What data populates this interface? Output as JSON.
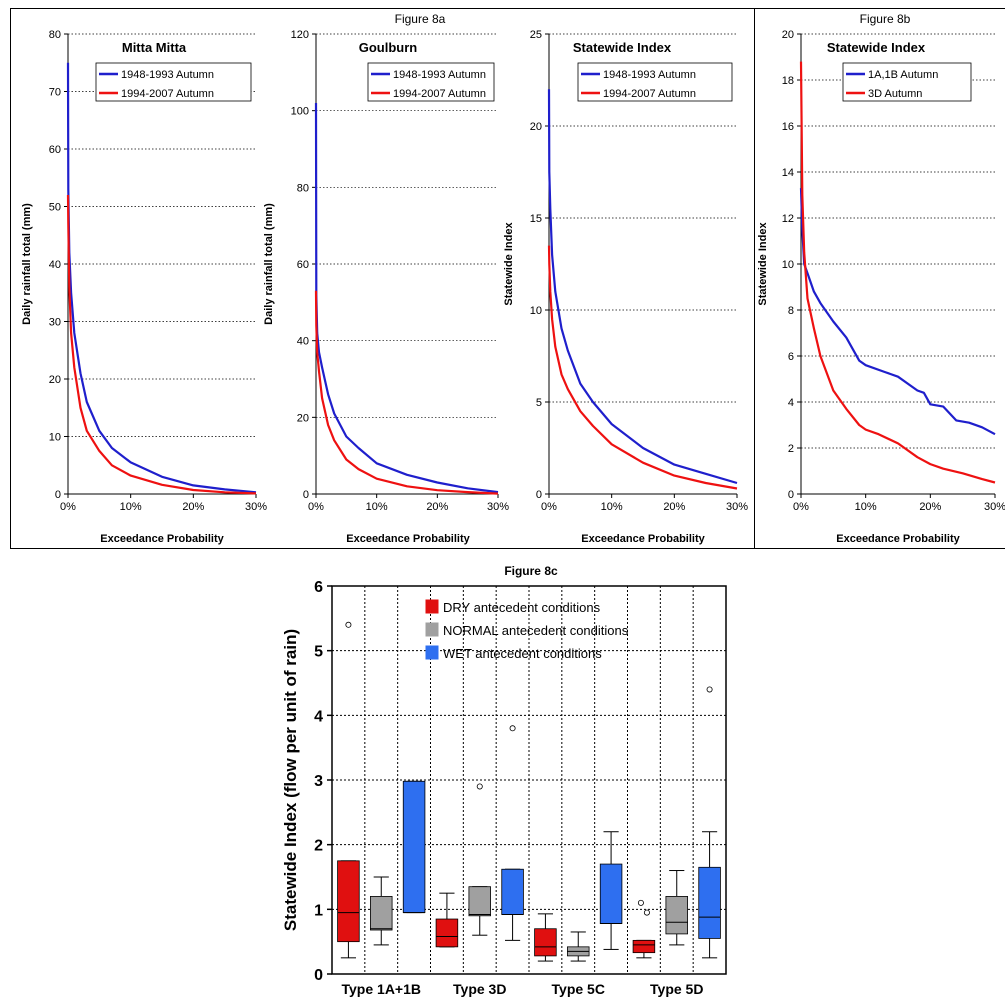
{
  "figures": {
    "fig8a_title": "Figure 8a",
    "fig8b_title": "Figure 8b",
    "fig8c_title": "Figure 8c"
  },
  "colors": {
    "blue": "#1f1fcc",
    "red": "#ee1111",
    "dry": "#e01010",
    "normal": "#a0a0a0",
    "wet": "#2e6ff0"
  },
  "chart_data": [
    {
      "id": "mitta",
      "type": "line",
      "title": "Mitta Mitta",
      "xlabel": "Exceedance Probability",
      "ylabel": "Daily rainfall total (mm)",
      "xlim": [
        0,
        30
      ],
      "ylim": [
        0,
        80
      ],
      "xticks": [
        0,
        10,
        20,
        30
      ],
      "xtick_labels": [
        "0%",
        "10%",
        "20%",
        "30%"
      ],
      "yticks": [
        0,
        10,
        20,
        30,
        40,
        50,
        60,
        70,
        80
      ],
      "grid": "horizontal-dotted",
      "legend_position": "top-right",
      "series": [
        {
          "name": "1948-1993 Autumn",
          "color": "#1f1fcc",
          "x": [
            0,
            0.05,
            0.2,
            0.5,
            1,
            2,
            3,
            5,
            7,
            10,
            15,
            20,
            25,
            30
          ],
          "y": [
            75,
            53,
            42,
            35,
            28,
            21,
            16,
            11,
            8,
            5.5,
            3,
            1.5,
            0.8,
            0.3
          ]
        },
        {
          "name": "1994-2007 Autumn",
          "color": "#ee1111",
          "x": [
            0,
            0.05,
            0.2,
            0.5,
            1,
            2,
            3,
            5,
            7,
            10,
            15,
            20,
            25,
            30
          ],
          "y": [
            52,
            47,
            36,
            28,
            22,
            15,
            11,
            7.5,
            5,
            3.2,
            1.6,
            0.7,
            0.3,
            0.1
          ]
        }
      ]
    },
    {
      "id": "goulburn",
      "type": "line",
      "title": "Goulburn",
      "xlabel": "Exceedance Probability",
      "ylabel": "Daily rainfall total (mm)",
      "xlim": [
        0,
        30
      ],
      "ylim": [
        0,
        120
      ],
      "xticks": [
        0,
        10,
        20,
        30
      ],
      "xtick_labels": [
        "0%",
        "10%",
        "20%",
        "30%"
      ],
      "yticks": [
        0,
        20,
        40,
        60,
        80,
        100,
        120
      ],
      "grid": "horizontal-dotted",
      "legend_position": "top-right",
      "series": [
        {
          "name": "1948-1993 Autumn",
          "color": "#1f1fcc",
          "x": [
            0,
            0.05,
            0.2,
            0.5,
            1,
            2,
            3,
            5,
            7,
            10,
            15,
            20,
            25,
            30
          ],
          "y": [
            102,
            52,
            42,
            37,
            33,
            26,
            21,
            15,
            12,
            8,
            5,
            3,
            1.5,
            0.5
          ]
        },
        {
          "name": "1994-2007 Autumn",
          "color": "#ee1111",
          "x": [
            0,
            0.05,
            0.2,
            0.5,
            1,
            2,
            3,
            5,
            7,
            10,
            15,
            20,
            25,
            30
          ],
          "y": [
            53,
            44,
            37,
            32,
            25,
            18,
            14,
            9,
            6.5,
            4,
            2,
            1,
            0.5,
            0.1
          ]
        }
      ]
    },
    {
      "id": "statewide8a",
      "type": "line",
      "title": "Statewide Index",
      "xlabel": "Exceedance Probability",
      "ylabel": "Statewide Index",
      "xlim": [
        0,
        30
      ],
      "ylim": [
        0,
        25
      ],
      "xticks": [
        0,
        10,
        20,
        30
      ],
      "xtick_labels": [
        "0%",
        "10%",
        "20%",
        "30%"
      ],
      "yticks": [
        0,
        5,
        10,
        15,
        20,
        25
      ],
      "grid": "horizontal-dotted",
      "legend_position": "top-right",
      "series": [
        {
          "name": "1948-1993 Autumn",
          "color": "#1f1fcc",
          "x": [
            0,
            0.05,
            0.2,
            0.5,
            1,
            2,
            3,
            5,
            7,
            10,
            15,
            20,
            25,
            30
          ],
          "y": [
            22,
            17.5,
            15.5,
            13,
            11,
            9,
            7.8,
            6,
            5,
            3.8,
            2.5,
            1.6,
            1.1,
            0.6
          ]
        },
        {
          "name": "1994-2007 Autumn",
          "color": "#ee1111",
          "x": [
            0,
            0.05,
            0.2,
            0.5,
            1,
            2,
            3,
            5,
            7,
            10,
            15,
            20,
            25,
            30
          ],
          "y": [
            13.5,
            12.5,
            11,
            9.5,
            8,
            6.5,
            5.7,
            4.5,
            3.7,
            2.7,
            1.7,
            1,
            0.6,
            0.3
          ]
        }
      ]
    },
    {
      "id": "statewide8b",
      "type": "line",
      "title": "Statewide Index",
      "xlabel": "Exceedance Probability",
      "ylabel": "Statewide Index",
      "xlim": [
        0,
        30
      ],
      "ylim": [
        0,
        20
      ],
      "xticks": [
        0,
        10,
        20,
        30
      ],
      "xtick_labels": [
        "0%",
        "10%",
        "20%",
        "30%"
      ],
      "yticks": [
        0,
        2,
        4,
        6,
        8,
        10,
        12,
        14,
        16,
        18,
        20
      ],
      "grid": "horizontal-dotted",
      "legend_position": "top-right",
      "series": [
        {
          "name": "1A,1B Autumn",
          "color": "#1f1fcc",
          "x": [
            0,
            0.2,
            0.5,
            1,
            2,
            3,
            5,
            7,
            9,
            10,
            13,
            15,
            18,
            19,
            20,
            22,
            24,
            26,
            28,
            30
          ],
          "y": [
            13.3,
            11.5,
            10,
            9.6,
            8.8,
            8.3,
            7.5,
            6.8,
            5.8,
            5.6,
            5.3,
            5.1,
            4.5,
            4.4,
            3.9,
            3.8,
            3.2,
            3.1,
            2.9,
            2.6
          ]
        },
        {
          "name": "3D Autumn",
          "color": "#ee1111",
          "x": [
            0,
            0.2,
            0.5,
            1,
            2,
            3,
            5,
            7,
            9,
            10,
            12,
            15,
            18,
            20,
            22,
            25,
            28,
            30
          ],
          "y": [
            18.8,
            13,
            10.5,
            8.5,
            7.2,
            6,
            4.5,
            3.7,
            3,
            2.8,
            2.6,
            2.2,
            1.6,
            1.3,
            1.1,
            0.9,
            0.65,
            0.5
          ]
        }
      ]
    },
    {
      "id": "fig8c",
      "type": "box",
      "title": "Figure 8c",
      "ylabel": "Statewide Index (flow per unit of rain)",
      "ylim": [
        0,
        6
      ],
      "yticks": [
        0,
        1,
        2,
        3,
        4,
        5,
        6
      ],
      "categories": [
        "Type 1A+1B",
        "Type 3D",
        "Type 5C",
        "Type 5D"
      ],
      "grid": "dotted",
      "legend_position": "top-center",
      "series": [
        {
          "name": "DRY antecedent conditions",
          "color": "#e01010",
          "boxes": [
            {
              "min": 0.25,
              "q1": 0.5,
              "median": 0.95,
              "q3": 1.75,
              "max": 1.75,
              "outliers": [
                5.4
              ]
            },
            {
              "min": 0.42,
              "q1": 0.42,
              "median": 0.58,
              "q3": 0.85,
              "max": 1.25,
              "outliers": []
            },
            {
              "min": 0.2,
              "q1": 0.28,
              "median": 0.42,
              "q3": 0.7,
              "max": 0.93,
              "outliers": []
            },
            {
              "min": 0.25,
              "q1": 0.33,
              "median": 0.45,
              "q3": 0.52,
              "max": 0.52,
              "outliers": [
                0.95,
                1.1
              ]
            }
          ]
        },
        {
          "name": "NORMAL antecedent conditions",
          "color": "#a0a0a0",
          "boxes": [
            {
              "min": 0.45,
              "q1": 0.68,
              "median": 0.7,
              "q3": 1.2,
              "max": 1.5,
              "outliers": []
            },
            {
              "min": 0.6,
              "q1": 0.9,
              "median": 0.92,
              "q3": 1.35,
              "max": 1.35,
              "outliers": [
                2.9
              ]
            },
            {
              "min": 0.2,
              "q1": 0.28,
              "median": 0.35,
              "q3": 0.42,
              "max": 0.65,
              "outliers": []
            },
            {
              "min": 0.45,
              "q1": 0.62,
              "median": 0.8,
              "q3": 1.2,
              "max": 1.6,
              "outliers": []
            }
          ]
        },
        {
          "name": "WET antecedent conditions",
          "color": "#2e6ff0",
          "boxes": [
            {
              "min": 0.95,
              "q1": 0.95,
              "median": 0.95,
              "q3": 2.98,
              "max": 2.98,
              "outliers": []
            },
            {
              "min": 0.52,
              "q1": 0.92,
              "median": 0.92,
              "q3": 1.62,
              "max": 1.62,
              "outliers": [
                3.8
              ]
            },
            {
              "min": 0.38,
              "q1": 0.78,
              "median": 0.78,
              "q3": 1.7,
              "max": 2.2,
              "outliers": []
            },
            {
              "min": 0.25,
              "q1": 0.55,
              "median": 0.88,
              "q3": 1.65,
              "max": 2.2,
              "outliers": [
                4.4
              ]
            }
          ]
        }
      ]
    }
  ]
}
